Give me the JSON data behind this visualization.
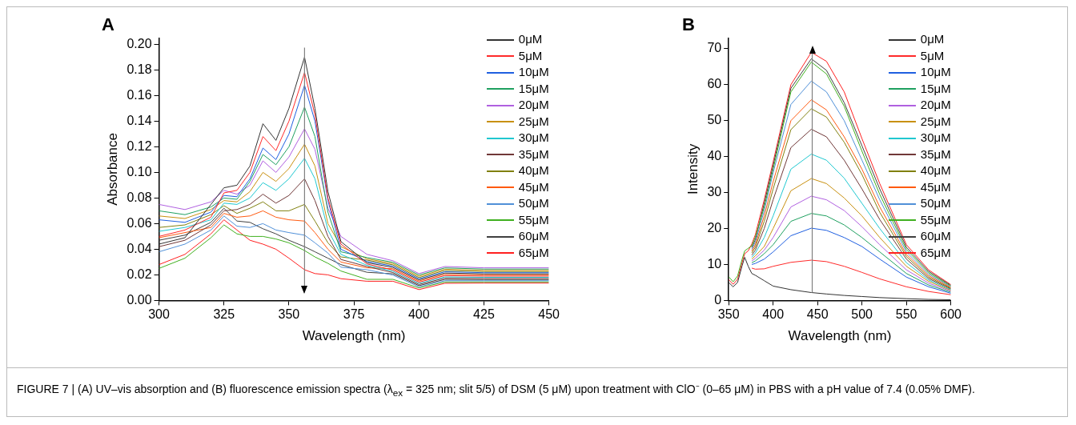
{
  "chart_data": [
    {
      "type": "line",
      "title": "A",
      "xlabel": "Wavelength (nm)",
      "ylabel": "Absorbance",
      "legend": "top right",
      "marker": "none",
      "xlim": [
        300,
        450
      ],
      "xticks": [
        300,
        325,
        350,
        375,
        400,
        425,
        450
      ],
      "ylim": [
        0,
        0.205
      ],
      "yticks": [
        {
          "value": 0,
          "label": "0.00"
        },
        {
          "value": 0.02,
          "label": "0.02"
        },
        {
          "value": 0.04,
          "label": "0.04"
        },
        {
          "value": 0.06,
          "label": "0.06"
        },
        {
          "value": 0.08,
          "label": "0.08"
        },
        {
          "value": 0.1,
          "label": "0.10"
        },
        {
          "value": 0.12,
          "label": "0.12"
        },
        {
          "value": 0.14,
          "label": "0.14"
        },
        {
          "value": 0.16,
          "label": "0.16"
        },
        {
          "value": 0.18,
          "label": "0.18"
        },
        {
          "value": 0.2,
          "label": "0.20"
        }
      ],
      "ref_lines": [
        {
          "axis": "x",
          "value": 356,
          "color": "#808080"
        }
      ],
      "annotations": [
        "FIGURE 7 | (A) UV–vis absorption and (B) fluorescence emission spectra (λ$_{ex}$ = 325 nm; slit 5/5) of DSM (5 μM) upon treatment with ClO⁻ (0–65 μM) in PBS with a pH value of 7.4 (0.05% DMF)."
      ],
      "x": [
        300,
        310,
        320,
        325,
        330,
        335,
        340,
        345,
        350,
        356,
        360,
        365,
        370,
        380,
        390,
        400,
        410,
        425,
        450
      ],
      "series": [
        {
          "name": "0μM",
          "color": "#333333",
          "values": [
            0.044,
            0.049,
            0.075,
            0.088,
            0.09,
            0.105,
            0.138,
            0.125,
            0.15,
            0.19,
            0.15,
            0.085,
            0.046,
            0.0295,
            0.0258,
            0.0161,
            0.0214,
            0.0208,
            0.0208
          ]
        },
        {
          "name": "5μM",
          "color": "#ff2a2a",
          "values": [
            0.05,
            0.055,
            0.065,
            0.084,
            0.086,
            0.1,
            0.128,
            0.117,
            0.14,
            0.178,
            0.145,
            0.08,
            0.044,
            0.0285,
            0.0238,
            0.0143,
            0.0194,
            0.019,
            0.019
          ]
        },
        {
          "name": "10μM",
          "color": "#1f5fe0",
          "values": [
            0.063,
            0.061,
            0.069,
            0.082,
            0.081,
            0.095,
            0.119,
            0.11,
            0.13,
            0.168,
            0.14,
            0.078,
            0.04,
            0.0305,
            0.0268,
            0.017,
            0.0224,
            0.0217,
            0.0217
          ]
        },
        {
          "name": "15μM",
          "color": "#1fa060",
          "values": [
            0.07,
            0.067,
            0.073,
            0.08,
            0.079,
            0.093,
            0.114,
            0.106,
            0.12,
            0.151,
            0.128,
            0.069,
            0.038,
            0.0335,
            0.0298,
            0.0199,
            0.0254,
            0.0245,
            0.0245
          ]
        },
        {
          "name": "20μM",
          "color": "#b060e0",
          "values": [
            0.075,
            0.071,
            0.077,
            0.086,
            0.083,
            0.09,
            0.109,
            0.1,
            0.112,
            0.134,
            0.118,
            0.072,
            0.05,
            0.036,
            0.031,
            0.021,
            0.0265,
            0.0255,
            0.0255
          ]
        },
        {
          "name": "25μM",
          "color": "#c89010",
          "values": [
            0.066,
            0.064,
            0.071,
            0.078,
            0.077,
            0.085,
            0.1,
            0.093,
            0.103,
            0.122,
            0.105,
            0.06,
            0.042,
            0.0325,
            0.0288,
            0.0189,
            0.0244,
            0.0235,
            0.0235
          ]
        },
        {
          "name": "30μM",
          "color": "#20c8d0",
          "values": [
            0.054,
            0.057,
            0.063,
            0.076,
            0.075,
            0.08,
            0.092,
            0.086,
            0.095,
            0.111,
            0.095,
            0.055,
            0.036,
            0.0275,
            0.0228,
            0.0134,
            0.0184,
            0.0181,
            0.0181
          ]
        },
        {
          "name": "35μM",
          "color": "#703838",
          "values": [
            0.042,
            0.047,
            0.059,
            0.07,
            0.071,
            0.075,
            0.083,
            0.076,
            0.082,
            0.095,
            0.078,
            0.05,
            0.032,
            0.0265,
            0.0218,
            0.0125,
            0.0174,
            0.0172,
            0.0172
          ]
        },
        {
          "name": "40μM",
          "color": "#808010",
          "values": [
            0.057,
            0.059,
            0.067,
            0.074,
            0.068,
            0.072,
            0.077,
            0.07,
            0.07,
            0.075,
            0.062,
            0.045,
            0.034,
            0.0315,
            0.0278,
            0.0179,
            0.0234,
            0.0226,
            0.0226
          ]
        },
        {
          "name": "45μM",
          "color": "#ff5a10",
          "values": [
            0.049,
            0.053,
            0.057,
            0.068,
            0.065,
            0.066,
            0.07,
            0.065,
            0.063,
            0.062,
            0.053,
            0.04,
            0.03,
            0.0255,
            0.0248,
            0.0152,
            0.0204,
            0.0199,
            0.0199
          ]
        },
        {
          "name": "50μM",
          "color": "#5090d8",
          "values": [
            0.038,
            0.044,
            0.055,
            0.066,
            0.058,
            0.057,
            0.06,
            0.055,
            0.053,
            0.051,
            0.045,
            0.037,
            0.026,
            0.024,
            0.0198,
            0.0107,
            0.0154,
            0.0154,
            0.0154
          ]
        },
        {
          "name": "55μM",
          "color": "#40b020",
          "values": [
            0.025,
            0.033,
            0.049,
            0.059,
            0.052,
            0.05,
            0.05,
            0.048,
            0.045,
            0.039,
            0.034,
            0.029,
            0.023,
            0.0165,
            0.0165,
            0.0098,
            0.0144,
            0.0145,
            0.0145
          ]
        },
        {
          "name": "60μM",
          "color": "#404040",
          "values": [
            0.047,
            0.051,
            0.061,
            0.072,
            0.062,
            0.061,
            0.056,
            0.052,
            0.047,
            0.042,
            0.038,
            0.033,
            0.028,
            0.022,
            0.0208,
            0.0116,
            0.0164,
            0.0163,
            0.0163
          ]
        },
        {
          "name": "65μM",
          "color": "#ff2020",
          "values": [
            0.028,
            0.036,
            0.052,
            0.063,
            0.055,
            0.047,
            0.044,
            0.04,
            0.033,
            0.024,
            0.021,
            0.02,
            0.017,
            0.015,
            0.015,
            0.0085,
            0.0134,
            0.0136,
            0.0136
          ]
        }
      ]
    },
    {
      "type": "line",
      "title": "B",
      "xlabel": "Wavelength (nm)",
      "ylabel": "Intensity",
      "legend": "top right",
      "marker": "none",
      "xlim": [
        350,
        600
      ],
      "xticks": [
        350,
        400,
        450,
        500,
        550,
        600
      ],
      "ylim": [
        0,
        73
      ],
      "yticks": [
        0,
        10,
        20,
        30,
        40,
        50,
        60,
        70
      ],
      "ref_lines": [
        {
          "axis": "x",
          "value": 444,
          "color": "#808080"
        }
      ],
      "x": [
        350,
        355,
        360,
        365,
        368,
        372,
        376,
        380,
        390,
        400,
        420,
        443,
        460,
        480,
        500,
        520,
        550,
        575,
        600
      ],
      "series": [
        {
          "name": "0μM",
          "color": "#333333",
          "values": [
            5.0,
            3.8,
            5.0,
            9.6,
            12,
            9.5,
            7.5,
            7,
            5.5,
            4,
            3,
            2.2,
            1.8,
            1.4,
            1.1,
            0.8,
            0.5,
            0.3,
            0.2
          ]
        },
        {
          "name": "5μM",
          "color": "#ff2a2a",
          "values": [
            null,
            null,
            null,
            null,
            null,
            null,
            9,
            8.7,
            8.8,
            9.5,
            10.6,
            11.2,
            10.8,
            9.5,
            7.8,
            6,
            3.8,
            2.5,
            1.6
          ]
        },
        {
          "name": "10μM",
          "color": "#1f5fe0",
          "values": [
            null,
            null,
            null,
            null,
            null,
            null,
            10,
            10.3,
            11.5,
            13.5,
            18,
            20.1,
            19.5,
            17.5,
            15,
            11.5,
            6.5,
            3.8,
            2.0
          ]
        },
        {
          "name": "15μM",
          "color": "#1fa060",
          "values": [
            null,
            null,
            null,
            null,
            null,
            null,
            10.5,
            11,
            13,
            15.5,
            22,
            24.2,
            23.5,
            21,
            17.5,
            13.5,
            7.5,
            4.3,
            2.3
          ]
        },
        {
          "name": "20μM",
          "color": "#b060e0",
          "values": [
            null,
            null,
            null,
            null,
            null,
            null,
            11,
            11.7,
            14,
            17.5,
            26,
            29,
            28,
            25,
            20.5,
            15.5,
            8.5,
            4.8,
            2.6
          ]
        },
        {
          "name": "25μM",
          "color": "#c89010",
          "values": [
            null,
            null,
            null,
            null,
            null,
            null,
            11.5,
            12.4,
            15,
            20,
            30.5,
            33.9,
            32.5,
            28.5,
            23.5,
            17.5,
            9.5,
            5.3,
            2.8
          ]
        },
        {
          "name": "30μM",
          "color": "#20c8d0",
          "values": [
            null,
            null,
            null,
            null,
            null,
            null,
            12,
            13.2,
            17.5,
            23.5,
            36.5,
            40.7,
            39,
            34,
            27,
            20,
            10.5,
            5.7,
            3.0
          ]
        },
        {
          "name": "35μM",
          "color": "#703838",
          "values": [
            null,
            null,
            null,
            null,
            null,
            null,
            12.6,
            14,
            20,
            28,
            42.5,
            47.6,
            45.5,
            39,
            31,
            22.5,
            11.5,
            6.1,
            3.2
          ]
        },
        {
          "name": "40μM",
          "color": "#808010",
          "values": [
            null,
            null,
            null,
            null,
            null,
            null,
            13.2,
            14.8,
            22,
            31,
            47.5,
            53.3,
            51,
            44,
            35,
            24.5,
            12.2,
            6.5,
            3.4
          ]
        },
        {
          "name": "45μM",
          "color": "#ff5a10",
          "values": [
            null,
            null,
            null,
            null,
            null,
            null,
            13.7,
            15.5,
            23.5,
            33,
            50,
            55.8,
            53,
            45.5,
            36.5,
            26,
            12.8,
            6.9,
            3.6
          ]
        },
        {
          "name": "50μM",
          "color": "#5090d8",
          "values": [
            null,
            null,
            null,
            null,
            null,
            null,
            14.2,
            16.2,
            25,
            35.5,
            54.5,
            61,
            58,
            50,
            39,
            28,
            13.5,
            7.3,
            3.8
          ]
        },
        {
          "name": "55μM",
          "color": "#40b020",
          "values": [
            6.6,
            5.2,
            6.8,
            11.4,
            13.8,
            14.5,
            15.2,
            17.6,
            26,
            36.5,
            58,
            66.3,
            63,
            54,
            41.5,
            29.5,
            14.2,
            7.7,
            4.0
          ]
        },
        {
          "name": "60μM",
          "color": "#404040",
          "values": [
            null,
            null,
            null,
            null,
            null,
            null,
            14.7,
            16.9,
            27,
            37.5,
            59,
            67.2,
            64,
            55,
            43,
            31,
            14.8,
            8.1,
            4.2
          ]
        },
        {
          "name": "65μM",
          "color": "#ff2020",
          "values": [
            5.8,
            4.5,
            5.9,
            10.5,
            13,
            13.8,
            15.7,
            18.3,
            28,
            38.5,
            60,
            69,
            66.5,
            58,
            45,
            32.5,
            15.5,
            8.5,
            4.4
          ]
        }
      ]
    }
  ]
}
